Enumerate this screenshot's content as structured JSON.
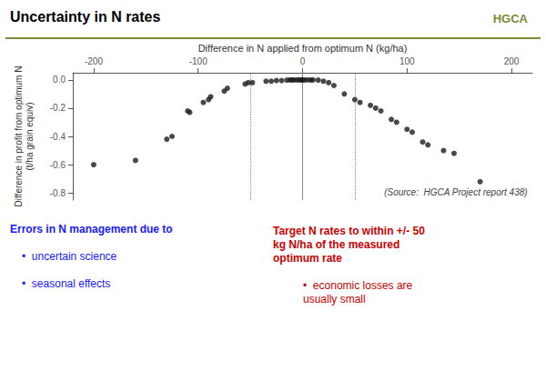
{
  "chart_data": {
    "type": "scatter",
    "title": "Uncertainty in N rates",
    "x_label": "Difference in N applied from optimum N (kg/ha)",
    "y_label": "Difference in profit from optimum N\n(t/ha grain equiv)",
    "xlim": [
      -220,
      220
    ],
    "ylim": [
      -0.85,
      0.05
    ],
    "xticks": [
      -200,
      -100,
      0,
      100,
      200
    ],
    "yticks": [
      {
        "value": 0.0,
        "label": "0.0"
      },
      -0.2,
      -0.4,
      -0.6,
      -0.8
    ],
    "grid": false,
    "color": "#1a1a1a",
    "x": [
      -200,
      -160,
      -130,
      -125,
      -110,
      -108,
      -95,
      -90,
      -88,
      -75,
      -72,
      -55,
      -52,
      -48,
      -35,
      -30,
      -25,
      -20,
      -15,
      -12,
      -10,
      -8,
      -5,
      -3,
      -1,
      0,
      2,
      5,
      8,
      10,
      15,
      20,
      25,
      30,
      40,
      50,
      55,
      65,
      70,
      75,
      85,
      90,
      100,
      105,
      115,
      120,
      135,
      145,
      170
    ],
    "values": [
      -0.6,
      -0.57,
      -0.42,
      -0.4,
      -0.22,
      -0.23,
      -0.16,
      -0.14,
      -0.12,
      -0.08,
      -0.06,
      -0.03,
      -0.02,
      -0.02,
      -0.01,
      -0.01,
      -0.005,
      -0.005,
      -0.002,
      -0.001,
      -0.001,
      -0.001,
      -0.001,
      -0.001,
      -0.001,
      0.0,
      -0.001,
      -0.001,
      -0.001,
      -0.001,
      -0.002,
      -0.01,
      -0.02,
      -0.04,
      -0.1,
      -0.14,
      -0.16,
      -0.18,
      -0.2,
      -0.22,
      -0.28,
      -0.3,
      -0.35,
      -0.37,
      -0.44,
      -0.46,
      -0.5,
      -0.52,
      -0.72
    ],
    "vlines": [
      {
        "x": 0,
        "line_style": "solid"
      },
      {
        "x": -50,
        "line_style": "dotted"
      },
      {
        "x": 50,
        "line_style": "dotted"
      }
    ],
    "source": "(Source:  HGCA Project report 438)",
    "logo_text": "HGCA",
    "rule_color": "#7a8c35",
    "left_header": "Errors in N management due to",
    "left_bullets": [
      "•  uncertain science",
      "•  seasonal effects"
    ],
    "left_color": "#1a1aff",
    "right_header": "Target N rates to within +/- 50\nkg N/ha of the measured\noptimum rate",
    "right_bullets": [
      "•  economic losses are\nusually small"
    ],
    "right_color": "#cc0000"
  }
}
